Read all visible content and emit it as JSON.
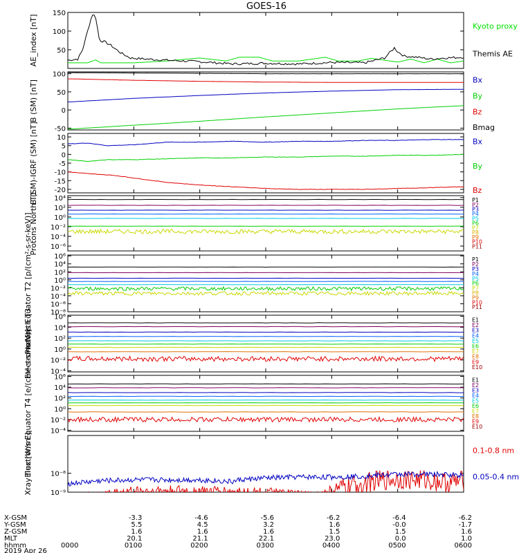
{
  "title": "GOES-16",
  "chart_data": [
    {
      "type": "line",
      "ylabel": "AE_index [nT]",
      "ylim": [
        0,
        150
      ],
      "yticks": [
        "150",
        "100",
        "50"
      ],
      "ytick_values": [
        150,
        100,
        50
      ],
      "series": [
        {
          "name": "Kyoto proxy AE",
          "color": "#00e000",
          "x": [
            0,
            0.3,
            0.42,
            0.5,
            0.55,
            0.6,
            1.0,
            1.5,
            2.0,
            2.4,
            2.6,
            2.9,
            3.1,
            3.5,
            3.9,
            4.1,
            4.4,
            4.6,
            5.0,
            5.2,
            5.4,
            5.6,
            5.8,
            6.0
          ],
          "y": [
            15,
            15,
            23,
            15,
            15,
            15,
            15,
            20,
            28,
            20,
            30,
            30,
            20,
            20,
            30,
            20,
            20,
            27,
            17,
            25,
            15,
            25,
            15,
            20
          ]
        },
        {
          "name": "Themis AE",
          "color": "#000000",
          "x": [
            0,
            0.15,
            0.22,
            0.3,
            0.37,
            0.42,
            0.48,
            0.55,
            0.65,
            0.8,
            0.95,
            1.2,
            1.5,
            2.0,
            2.5,
            3.0,
            3.5,
            4.0,
            4.5,
            4.8,
            4.95,
            5.0,
            5.1,
            5.3,
            5.5,
            5.7,
            6.0
          ],
          "y": [
            22,
            25,
            48,
            100,
            145,
            140,
            75,
            72,
            62,
            42,
            28,
            25,
            22,
            18,
            12,
            14,
            12,
            16,
            15,
            28,
            55,
            45,
            33,
            30,
            25,
            28,
            30
          ]
        }
      ]
    },
    {
      "type": "line",
      "ylabel": "B (SM) [nT]",
      "ylim": [
        -55,
        105
      ],
      "yticks": [
        "100",
        "50",
        "0",
        "-50"
      ],
      "ytick_values": [
        100,
        50,
        0,
        -50
      ],
      "series": [
        {
          "name": "Bx",
          "color": "#0000c0",
          "x": [
            0,
            1,
            2,
            3,
            4,
            5,
            6
          ],
          "y": [
            22,
            32,
            40,
            47,
            52,
            56,
            57
          ]
        },
        {
          "name": "By",
          "color": "#00d000",
          "x": [
            0,
            1,
            2,
            3,
            4,
            5,
            6
          ],
          "y": [
            -53,
            -42,
            -31,
            -19,
            -8,
            3,
            12
          ]
        },
        {
          "name": "Bz",
          "color": "#e00000",
          "x": [
            0,
            1,
            2,
            3,
            4,
            5,
            6
          ],
          "y": [
            86,
            82,
            79,
            77,
            76,
            76,
            76
          ]
        },
        {
          "name": "Bmag",
          "color": "#000000",
          "x": [
            0,
            1,
            2,
            3,
            4,
            5,
            6
          ],
          "y": [
            103,
            102,
            101,
            100,
            100,
            100,
            100
          ]
        }
      ]
    },
    {
      "type": "line",
      "ylabel": "B (SM)-IGRF (SM) [nT]",
      "ylim": [
        -22,
        12
      ],
      "yticks": [
        "10",
        "5",
        "0",
        "-5",
        "-10",
        "-15",
        "-20"
      ],
      "ytick_values": [
        10,
        5,
        0,
        -5,
        -10,
        -15,
        -20
      ],
      "series": [
        {
          "name": "Bx",
          "color": "#0000c0",
          "x": [
            0,
            0.3,
            0.6,
            1,
            1.5,
            2,
            2.5,
            3,
            3.5,
            4,
            4.5,
            5,
            5.5,
            6
          ],
          "y": [
            6,
            6.5,
            5,
            5.5,
            7,
            7,
            7.5,
            7,
            7.5,
            7.5,
            8,
            8,
            8.5,
            8.5
          ]
        },
        {
          "name": "By",
          "color": "#00d000",
          "x": [
            0,
            0.3,
            0.6,
            1,
            1.5,
            2,
            2.5,
            3,
            3.5,
            4,
            4.5,
            5,
            5.5,
            6
          ],
          "y": [
            -3,
            -4,
            -3,
            -3,
            -2.5,
            -2,
            -2,
            -1.5,
            -1.5,
            -1,
            -1,
            -0.5,
            -0.5,
            0
          ]
        },
        {
          "name": "Bz",
          "color": "#e00000",
          "x": [
            0,
            0.3,
            0.7,
            1.1,
            1.5,
            2,
            2.5,
            3,
            3.5,
            4,
            4.5,
            5,
            5.5,
            6
          ],
          "y": [
            -10,
            -11,
            -12,
            -14,
            -16,
            -17.5,
            -18.5,
            -19.5,
            -20,
            -20,
            -20,
            -19.5,
            -19,
            -18.5
          ]
        }
      ]
    },
    {
      "type": "line",
      "ylabel": "Protons North T1",
      "log": true,
      "ylim": [
        -7,
        4.4
      ],
      "yticks": [
        "10^4",
        "10^2",
        "10^0",
        "10^-2",
        "10^-4",
        "10^-6"
      ],
      "ytick_values": [
        4,
        2,
        0,
        -2,
        -4,
        -6
      ],
      "series": [
        {
          "name": "P1",
          "color": "#000000",
          "level": 3.6
        },
        {
          "name": "P2",
          "color": "#800060",
          "level": 2.4
        },
        {
          "name": "P3",
          "color": "#0000c0",
          "level": 1.4
        },
        {
          "name": "P4",
          "color": "#0060ff",
          "level": 0.6
        },
        {
          "name": "P5",
          "color": "#00c8e0",
          "level": -0.3
        },
        {
          "name": "P6",
          "color": "#00d000",
          "level": -1.9
        },
        {
          "name": "P7",
          "color": "#c8d800",
          "level": -3.0,
          "noisy": true
        },
        {
          "name": "P8",
          "color": "#e0b000"
        },
        {
          "name": "P9",
          "color": "#e07000"
        },
        {
          "name": "P10",
          "color": "#e00000"
        },
        {
          "name": "P11",
          "color": "#a00000"
        }
      ]
    },
    {
      "type": "line",
      "ylabel": "Protons Equator T2 [p/(cm²-s-sr-keV)]",
      "log": true,
      "ylim": [
        -8,
        6.2
      ],
      "yticks": [
        "10^6",
        "10^4",
        "10^2",
        "10^0",
        "10^-2",
        "10^-4",
        "10^-6",
        "10^-8"
      ],
      "ytick_values": [
        6,
        4,
        2,
        0,
        -2,
        -4,
        -6,
        -8
      ],
      "series": [
        {
          "name": "P1",
          "color": "#000000",
          "level": 3.2
        },
        {
          "name": "P2",
          "color": "#800060",
          "level": 1.8
        },
        {
          "name": "P3",
          "color": "#0000c0",
          "level": 0.4
        },
        {
          "name": "P4",
          "color": "#0060ff",
          "level": -0.4
        },
        {
          "name": "P5",
          "color": "#00c8e0",
          "level": -1.2
        },
        {
          "name": "P6",
          "color": "#00d000",
          "level": -2.2,
          "noisy": true
        },
        {
          "name": "P7",
          "color": "#c8d800",
          "level": -3.4,
          "noisy": true
        },
        {
          "name": "P8",
          "color": "#e0b000"
        },
        {
          "name": "P9",
          "color": "#e07000"
        },
        {
          "name": "P10",
          "color": "#e00000"
        },
        {
          "name": "P11",
          "color": "#a00000"
        }
      ]
    },
    {
      "type": "line",
      "ylabel": "Electrons North T3",
      "log": true,
      "ylim": [
        -4.2,
        6.2
      ],
      "yticks": [
        "10^6",
        "10^4",
        "10^2",
        "10^0",
        "10^-2",
        "10^-4"
      ],
      "ytick_values": [
        6,
        4,
        2,
        0,
        -2,
        -4
      ],
      "series": [
        {
          "name": "E1",
          "color": "#000000",
          "level": 4.8
        },
        {
          "name": "E2",
          "color": "#800060",
          "level": 4.1
        },
        {
          "name": "E3",
          "color": "#0000c0",
          "level": 3.1
        },
        {
          "name": "E4",
          "color": "#0060ff",
          "level": 2.3
        },
        {
          "name": "E5",
          "color": "#00c8e0",
          "level": 1.5
        },
        {
          "name": "E6",
          "color": "#00d000",
          "level": 0.9
        },
        {
          "name": "E7",
          "color": "#c8d800",
          "level": 0.3
        },
        {
          "name": "E8",
          "color": "#e07000",
          "level": -0.5
        },
        {
          "name": "E9",
          "color": "#e00000",
          "level": -1.8,
          "noisy": true
        },
        {
          "name": "E10",
          "color": "#a00000"
        }
      ]
    },
    {
      "type": "line",
      "ylabel": "Electrons Equator T4 [e/(cm²-s-sr-keV)]",
      "log": true,
      "ylim": [
        -4.2,
        6.2
      ],
      "yticks": [
        "10^6",
        "10^4",
        "10^2",
        "10^0",
        "10^-2",
        "10^-4"
      ],
      "ytick_values": [
        6,
        4,
        2,
        0,
        -2,
        -4
      ],
      "series": [
        {
          "name": "E1",
          "color": "#000000",
          "level": 4.6
        },
        {
          "name": "E2",
          "color": "#800060",
          "level": 3.9
        },
        {
          "name": "E3",
          "color": "#0000c0",
          "level": 3.0
        },
        {
          "name": "E4",
          "color": "#0060ff",
          "level": 2.3
        },
        {
          "name": "E5",
          "color": "#00c8e0",
          "level": 1.6
        },
        {
          "name": "E6",
          "color": "#00d000",
          "level": 1.1
        },
        {
          "name": "E7",
          "color": "#c8d800",
          "level": 0.6
        },
        {
          "name": "E8",
          "color": "#e07000",
          "level": -0.6
        },
        {
          "name": "E9",
          "color": "#e00000",
          "level": -2.0,
          "noisy": true
        },
        {
          "name": "E10",
          "color": "#a00000"
        }
      ]
    },
    {
      "type": "line",
      "ylabel": "Xray flux [W/m²]",
      "log": true,
      "ylim": [
        -9,
        -6
      ],
      "yticks": [
        "10^-8",
        "10^-9"
      ],
      "ytick_values": [
        -8,
        -9
      ],
      "series": [
        {
          "name": "0.1-0.8 nm",
          "color": "#e00000",
          "noisy": true,
          "x": [
            0,
            1,
            2,
            3,
            3.8,
            4.2,
            4.6,
            5.0,
            5.4,
            5.8,
            6
          ],
          "y": [
            -9.2,
            -8.95,
            -8.95,
            -9.0,
            -9.1,
            -8.75,
            -8.45,
            -8.3,
            -8.35,
            -8.5,
            -8.4
          ]
        },
        {
          "name": "0.05-0.4 nm",
          "color": "#0000c0",
          "noisy": true,
          "x": [
            0,
            0.5,
            1.0,
            1.5,
            2.0,
            2.5,
            2.6,
            3.0,
            3.5,
            4.0,
            4.5,
            5.0,
            5.5,
            6
          ],
          "y": [
            -8.55,
            -8.4,
            -8.35,
            -8.35,
            -8.35,
            -8.45,
            -8.35,
            -8.25,
            -8.2,
            -8.2,
            -8.15,
            -8.05,
            -8.05,
            -8.1
          ]
        }
      ]
    }
  ],
  "x_axis": {
    "rows": [
      {
        "label": "X-GSM",
        "values": [
          "",
          "-3.3",
          "-4.6",
          "-5.6",
          "-6.2",
          "-6.4",
          "-6.2"
        ]
      },
      {
        "label": "Y-GSM",
        "values": [
          "",
          "5.5",
          "4.5",
          "3.2",
          "1.6",
          "-0.0",
          "-1.7"
        ]
      },
      {
        "label": "Z-GSM",
        "values": [
          "",
          "1.6",
          "1.6",
          "1.6",
          "1.5",
          "1.5",
          "1.6"
        ]
      },
      {
        "label": "MLT",
        "values": [
          "",
          "20.1",
          "21.1",
          "22.1",
          "23.0",
          "0.0",
          "1.0"
        ]
      },
      {
        "label": "hhmm",
        "values": [
          "0000",
          "0100",
          "0200",
          "0300",
          "0400",
          "0500",
          "0600"
        ]
      }
    ],
    "date": "2019 Apr 26"
  }
}
